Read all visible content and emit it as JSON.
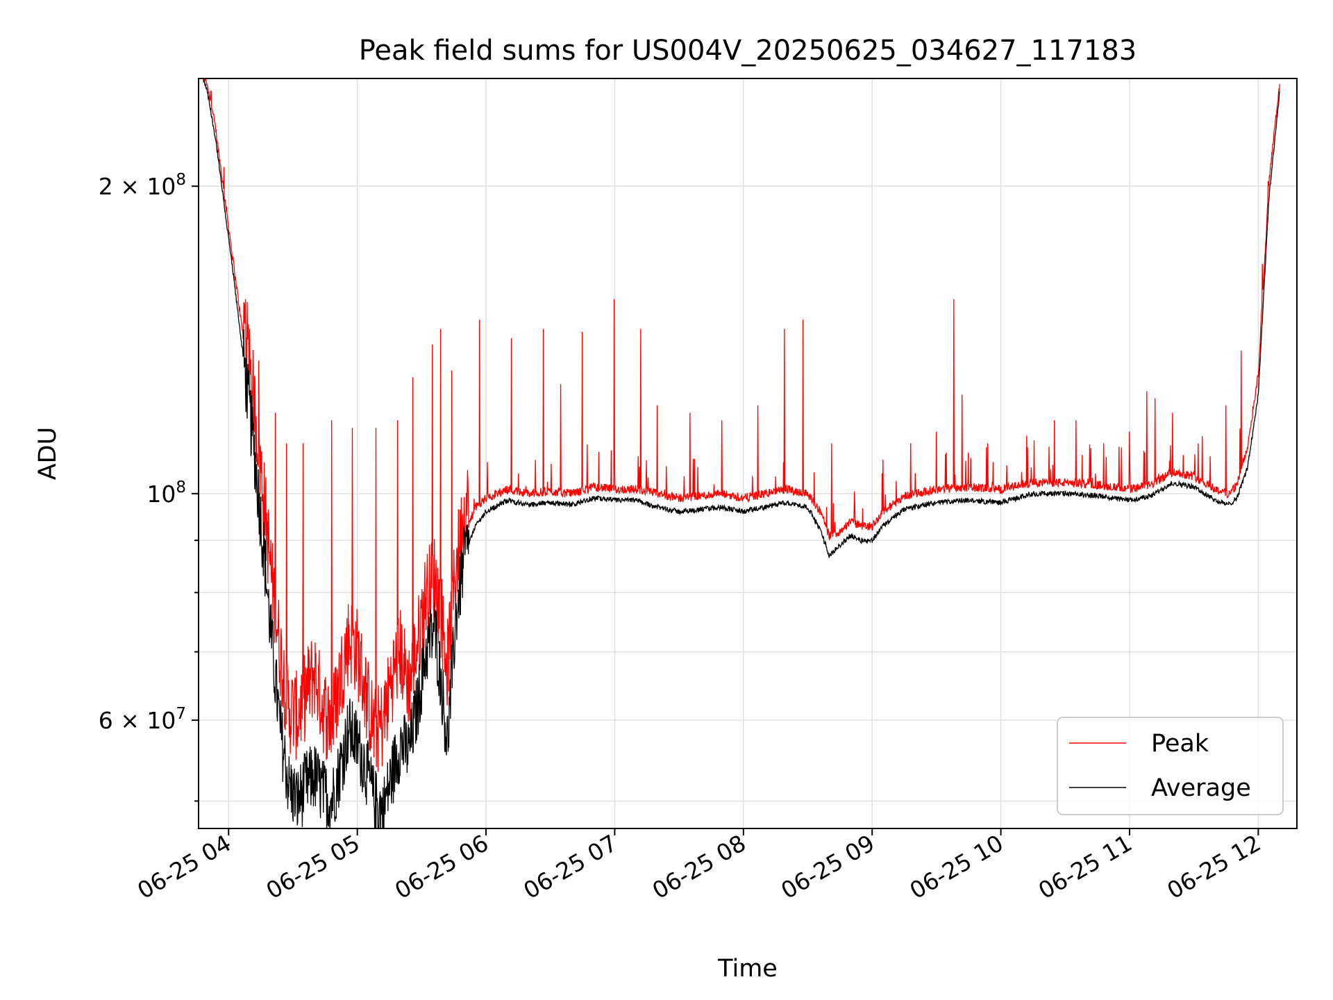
{
  "chart_data": {
    "type": "line",
    "title": "Peak field sums for US004V_20250625_034627_117183",
    "xlabel": "Time",
    "ylabel": "ADU",
    "yscale": "log",
    "xlim": [
      "2025-06-25 03:46",
      "2025-06-25 12:18"
    ],
    "ylim": [
      47000000,
      255000000
    ],
    "grid": true,
    "legend_position": "lower-right",
    "x_ticks": [
      "06-25 04",
      "06-25 05",
      "06-25 06",
      "06-25 07",
      "06-25 08",
      "06-25 09",
      "06-25 10",
      "06-25 11",
      "06-25 12"
    ],
    "y_ticks": [
      {
        "value": 200000000,
        "label": "2 × 10⁸",
        "mantissa": "2 × 10",
        "exp": "8"
      },
      {
        "value": 100000000,
        "label": "10⁸",
        "mantissa": "10",
        "exp": "8"
      },
      {
        "value": 60000000,
        "label": "6 × 10⁷",
        "mantissa": "6 × 10",
        "exp": "7"
      }
    ],
    "y_minor_ticks": [
      50000000,
      70000000,
      80000000,
      90000000
    ],
    "series": [
      {
        "name": "Peak",
        "color": "#ff0000",
        "x": [
          "2025-06-25 03:48",
          "2025-06-25 03:50",
          "2025-06-25 03:54",
          "2025-06-25 04:02",
          "2025-06-25 04:08",
          "2025-06-25 04:12",
          "2025-06-25 04:16",
          "2025-06-25 04:20",
          "2025-06-25 04:24",
          "2025-06-25 04:28",
          "2025-06-25 04:32",
          "2025-06-25 04:36",
          "2025-06-25 04:40",
          "2025-06-25 04:44",
          "2025-06-25 04:48",
          "2025-06-25 04:52",
          "2025-06-25 04:56",
          "2025-06-25 05:00",
          "2025-06-25 05:04",
          "2025-06-25 05:08",
          "2025-06-25 05:12",
          "2025-06-25 05:16",
          "2025-06-25 05:20",
          "2025-06-25 05:24",
          "2025-06-25 05:28",
          "2025-06-25 05:32",
          "2025-06-25 05:36",
          "2025-06-25 05:39",
          "2025-06-25 05:42",
          "2025-06-25 05:46",
          "2025-06-25 05:50",
          "2025-06-25 05:55",
          "2025-06-25 06:00",
          "2025-06-25 06:10",
          "2025-06-25 06:20",
          "2025-06-25 06:30",
          "2025-06-25 06:40",
          "2025-06-25 06:50",
          "2025-06-25 07:00",
          "2025-06-25 07:10",
          "2025-06-25 07:20",
          "2025-06-25 07:30",
          "2025-06-25 07:40",
          "2025-06-25 07:50",
          "2025-06-25 08:00",
          "2025-06-25 08:10",
          "2025-06-25 08:20",
          "2025-06-25 08:30",
          "2025-06-25 08:36",
          "2025-06-25 08:40",
          "2025-06-25 08:45",
          "2025-06-25 08:50",
          "2025-06-25 08:55",
          "2025-06-25 09:00",
          "2025-06-25 09:05",
          "2025-06-25 09:15",
          "2025-06-25 09:30",
          "2025-06-25 09:45",
          "2025-06-25 10:00",
          "2025-06-25 10:15",
          "2025-06-25 10:30",
          "2025-06-25 10:45",
          "2025-06-25 11:00",
          "2025-06-25 11:10",
          "2025-06-25 11:20",
          "2025-06-25 11:30",
          "2025-06-25 11:40",
          "2025-06-25 11:46",
          "2025-06-25 11:50",
          "2025-06-25 11:55",
          "2025-06-25 12:00",
          "2025-06-25 12:05",
          "2025-06-25 12:10"
        ],
        "values": [
          255000000,
          250000000,
          225000000,
          168000000,
          135000000,
          115000000,
          95000000,
          78000000,
          66000000,
          58000000,
          57000000,
          60000000,
          63000000,
          58000000,
          56000000,
          62000000,
          68000000,
          66000000,
          60000000,
          55000000,
          56000000,
          62000000,
          66000000,
          61000000,
          67000000,
          75000000,
          78000000,
          72000000,
          64000000,
          80000000,
          90000000,
          96000000,
          98000000,
          100000000,
          99000000,
          99500000,
          99000000,
          100500000,
          100000000,
          100000000,
          99000000,
          98000000,
          98500000,
          99000000,
          98000000,
          99000000,
          100000000,
          99000000,
          95000000,
          90000000,
          91000000,
          93000000,
          92000000,
          92000000,
          95000000,
          98500000,
          100000000,
          100500000,
          100000000,
          101500000,
          101500000,
          101000000,
          100000000,
          101000000,
          104000000,
          103000000,
          100000000,
          99000000,
          101000000,
          110000000,
          130000000,
          200000000,
          250000000
        ]
      },
      {
        "name": "Average",
        "color": "#000000",
        "x": [
          "2025-06-25 03:48",
          "2025-06-25 03:50",
          "2025-06-25 03:54",
          "2025-06-25 04:02",
          "2025-06-25 04:08",
          "2025-06-25 04:12",
          "2025-06-25 04:16",
          "2025-06-25 04:20",
          "2025-06-25 04:24",
          "2025-06-25 04:28",
          "2025-06-25 04:32",
          "2025-06-25 04:36",
          "2025-06-25 04:40",
          "2025-06-25 04:44",
          "2025-06-25 04:48",
          "2025-06-25 04:52",
          "2025-06-25 04:56",
          "2025-06-25 05:00",
          "2025-06-25 05:04",
          "2025-06-25 05:08",
          "2025-06-25 05:12",
          "2025-06-25 05:16",
          "2025-06-25 05:20",
          "2025-06-25 05:24",
          "2025-06-25 05:28",
          "2025-06-25 05:32",
          "2025-06-25 05:36",
          "2025-06-25 05:39",
          "2025-06-25 05:42",
          "2025-06-25 05:46",
          "2025-06-25 05:50",
          "2025-06-25 05:55",
          "2025-06-25 06:00",
          "2025-06-25 06:10",
          "2025-06-25 06:20",
          "2025-06-25 06:30",
          "2025-06-25 06:40",
          "2025-06-25 06:50",
          "2025-06-25 07:00",
          "2025-06-25 07:10",
          "2025-06-25 07:20",
          "2025-06-25 07:30",
          "2025-06-25 07:40",
          "2025-06-25 07:50",
          "2025-06-25 08:00",
          "2025-06-25 08:10",
          "2025-06-25 08:20",
          "2025-06-25 08:30",
          "2025-06-25 08:36",
          "2025-06-25 08:40",
          "2025-06-25 08:45",
          "2025-06-25 08:50",
          "2025-06-25 08:55",
          "2025-06-25 09:00",
          "2025-06-25 09:05",
          "2025-06-25 09:15",
          "2025-06-25 09:30",
          "2025-06-25 09:45",
          "2025-06-25 10:00",
          "2025-06-25 10:15",
          "2025-06-25 10:30",
          "2025-06-25 10:45",
          "2025-06-25 11:00",
          "2025-06-25 11:10",
          "2025-06-25 11:20",
          "2025-06-25 11:30",
          "2025-06-25 11:40",
          "2025-06-25 11:46",
          "2025-06-25 11:50",
          "2025-06-25 11:55",
          "2025-06-25 12:00",
          "2025-06-25 12:05",
          "2025-06-25 12:10"
        ],
        "values": [
          255000000,
          248000000,
          222000000,
          165000000,
          130000000,
          110000000,
          90000000,
          72000000,
          59000000,
          52000000,
          50000000,
          52000000,
          53000000,
          51000000,
          50000000,
          54000000,
          59000000,
          57000000,
          54000000,
          50000000,
          49000000,
          53000000,
          57000000,
          56000000,
          62000000,
          70000000,
          74000000,
          66000000,
          57000000,
          76000000,
          87000000,
          93000000,
          96000000,
          98500000,
          97500000,
          98000000,
          97500000,
          99000000,
          98500000,
          98500000,
          97000000,
          96000000,
          96500000,
          97000000,
          96000000,
          97000000,
          98000000,
          97000000,
          92000000,
          87000000,
          89000000,
          91000000,
          90000000,
          90000000,
          93000000,
          96500000,
          98000000,
          98500000,
          98000000,
          100000000,
          100000000,
          99500000,
          98500000,
          99500000,
          102500000,
          101500000,
          98500000,
          97500000,
          99000000,
          106000000,
          125000000,
          195000000,
          248000000
        ]
      }
    ],
    "peak_spikes": {
      "x": [
        "2025-06-25 04:08",
        "2025-06-25 04:10",
        "2025-06-25 04:14",
        "2025-06-25 04:22",
        "2025-06-25 04:27",
        "2025-06-25 04:35",
        "2025-06-25 04:48",
        "2025-06-25 04:58",
        "2025-06-25 05:09",
        "2025-06-25 05:19",
        "2025-06-25 05:26",
        "2025-06-25 05:35",
        "2025-06-25 05:39",
        "2025-06-25 05:44",
        "2025-06-25 05:57",
        "2025-06-25 06:12",
        "2025-06-25 06:27",
        "2025-06-25 06:35",
        "2025-06-25 06:45",
        "2025-06-25 07:00",
        "2025-06-25 07:12",
        "2025-06-25 07:20",
        "2025-06-25 07:35",
        "2025-06-25 07:50",
        "2025-06-25 08:07",
        "2025-06-25 08:19",
        "2025-06-25 08:28",
        "2025-06-25 08:41",
        "2025-06-25 09:05",
        "2025-06-25 09:18",
        "2025-06-25 09:30",
        "2025-06-25 09:38",
        "2025-06-25 09:42",
        "2025-06-25 09:54",
        "2025-06-25 10:12",
        "2025-06-25 10:25",
        "2025-06-25 10:35",
        "2025-06-25 10:48",
        "2025-06-25 11:00",
        "2025-06-25 11:08",
        "2025-06-25 11:12",
        "2025-06-25 11:20",
        "2025-06-25 11:32",
        "2025-06-25 11:45",
        "2025-06-25 11:52"
      ],
      "values": [
        155000000,
        145000000,
        135000000,
        120000000,
        112000000,
        112000000,
        118000000,
        116000000,
        116000000,
        118000000,
        130000000,
        140000000,
        145000000,
        132000000,
        148000000,
        142000000,
        145000000,
        128000000,
        144000000,
        155000000,
        145000000,
        122000000,
        120000000,
        118000000,
        122000000,
        145000000,
        148000000,
        112000000,
        108000000,
        112000000,
        115000000,
        155000000,
        125000000,
        112000000,
        114000000,
        118000000,
        118000000,
        112000000,
        115000000,
        126000000,
        124000000,
        120000000,
        112000000,
        122000000,
        138000000
      ]
    }
  }
}
